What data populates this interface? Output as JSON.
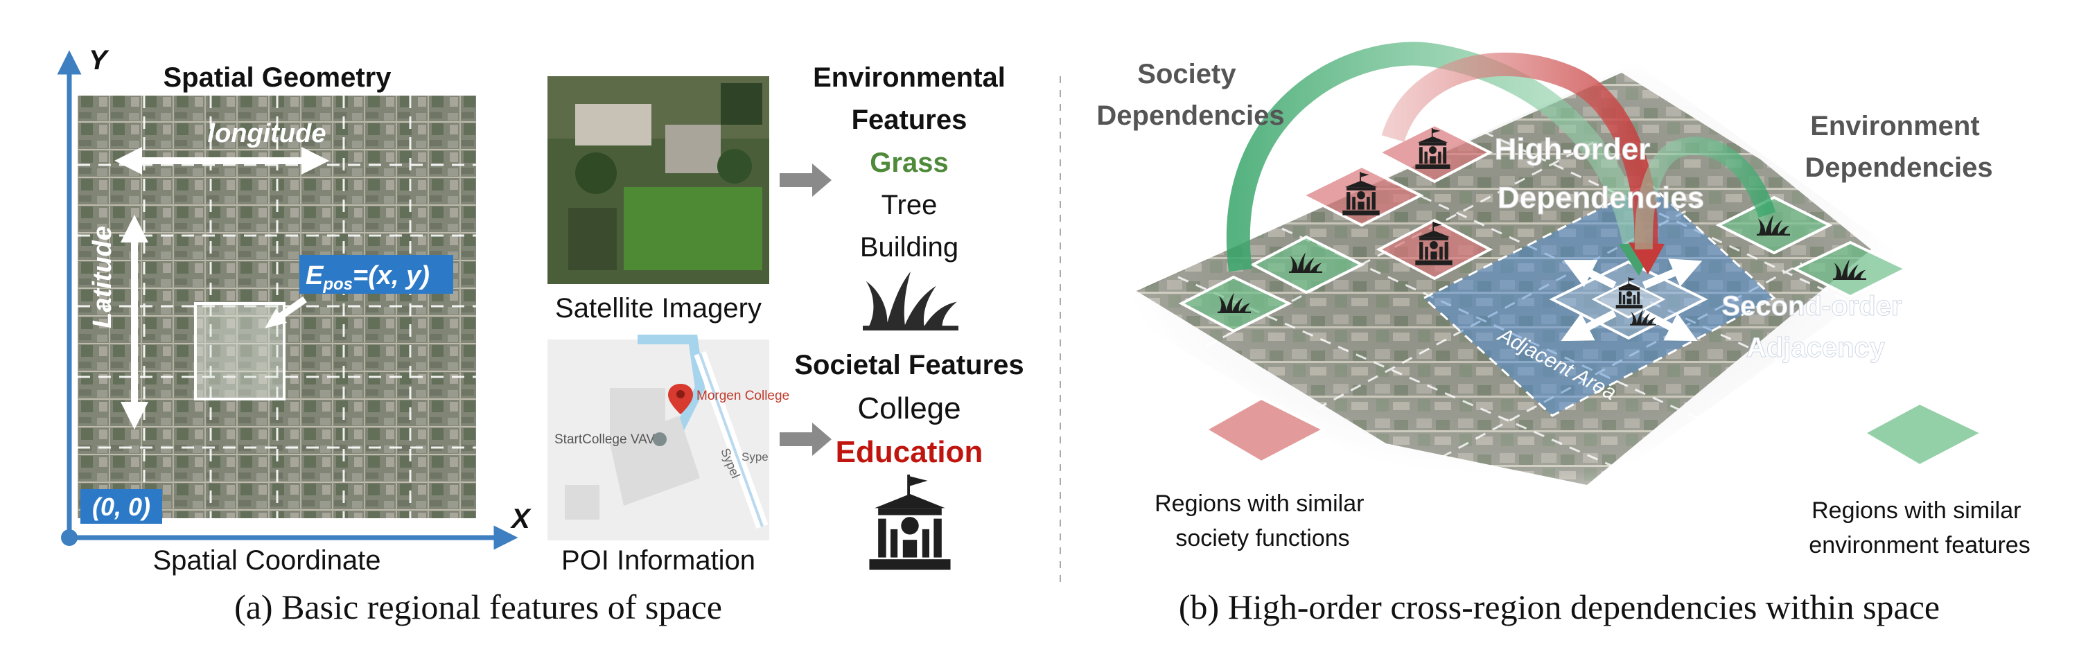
{
  "panel_a": {
    "caption": "(a) Basic regional features of space",
    "axis_y": "Y",
    "axis_x": "X",
    "spatial_geometry_title": "Spatial Geometry",
    "longitude_label": "longitude",
    "latitude_label": "Latitude",
    "epos_e": "E",
    "epos_sub": "pos",
    "epos_rest": "=(x, y)",
    "origin_label": "(0, 0)",
    "spatial_coordinate_label": "Spatial Coordinate",
    "satellite_label": "Satellite Imagery",
    "poi_label": "POI Information",
    "poi_map_labels": {
      "college": "Morgen College",
      "startcollege": "StartCollege VAVO",
      "street1": "Sypel",
      "street2": "Sype"
    },
    "env_features": {
      "title_line1": "Environmental",
      "title_line2": "Features",
      "items": [
        "Grass",
        "Tree",
        "Building"
      ]
    },
    "soc_features": {
      "title": "Societal Features",
      "items": [
        "College",
        "Education"
      ]
    }
  },
  "panel_b": {
    "caption": "(b) High-order cross-region dependencies within space",
    "society_dependencies": [
      "Society",
      "Dependencies"
    ],
    "environment_dependencies": [
      "Environment",
      "Dependencies"
    ],
    "high_order": [
      "High-order",
      "Dependencies"
    ],
    "second_order": [
      "Second-order",
      "Adjacency"
    ],
    "adjacent_area": "Adjacent Area",
    "legend_society": [
      "Regions with similar",
      "society functions"
    ],
    "legend_environment": [
      "Regions with similar",
      "environment features"
    ]
  },
  "colors": {
    "axis_blue": "#3e7fc2",
    "grass_green": "#4e8a3a",
    "education_red": "#c0140e",
    "society_red": "#d9787a",
    "environment_green": "#6fbf8a",
    "adjacent_blue": "#4f8ed6",
    "arrow_gray": "#8a8a8a"
  },
  "icons": [
    "grass-icon",
    "school-icon",
    "map-pin-icon",
    "right-arrow-icon"
  ]
}
